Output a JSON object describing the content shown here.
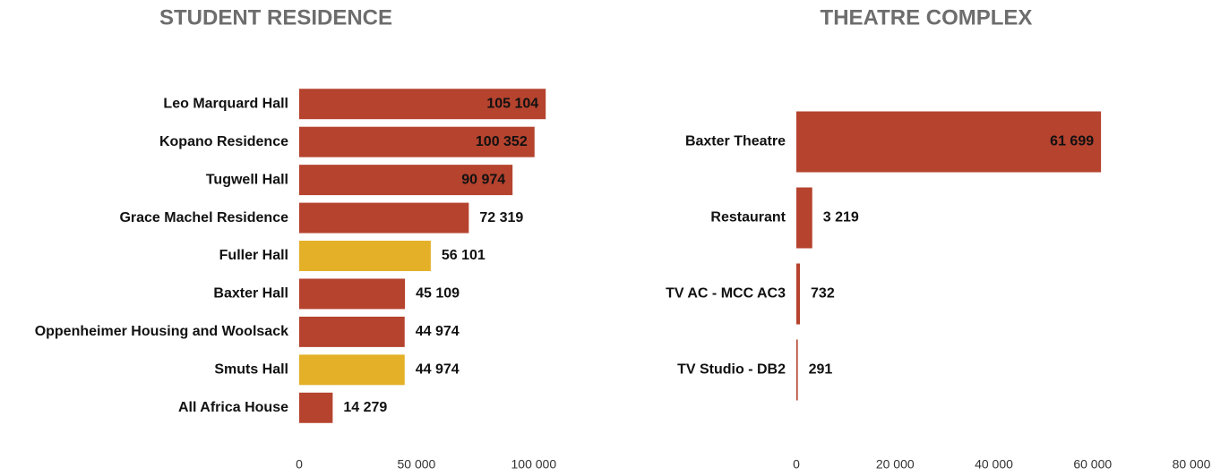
{
  "chart_data": [
    {
      "type": "hbar",
      "title": "STUDENT RESIDENCE",
      "categories": [
        "Leo Marquard Hall",
        "Kopano Residence",
        "Tugwell Hall",
        "Grace Machel Residence",
        "Fuller Hall",
        "Baxter Hall",
        "Oppenheimer Housing and Woolsack",
        "Smuts Hall",
        "All Africa House"
      ],
      "values": [
        105104,
        100352,
        90974,
        72319,
        56101,
        45109,
        44974,
        44974,
        14279
      ],
      "value_labels": [
        "105 104",
        "100 352",
        "90 974",
        "72 319",
        "56 101",
        "45 109",
        "44 974",
        "44 974",
        "14 279"
      ],
      "colors": [
        "#b5432e",
        "#b5432e",
        "#b5432e",
        "#b5432e",
        "#e3b027",
        "#b5432e",
        "#b5432e",
        "#e3b027",
        "#b5432e"
      ],
      "xlim": [
        0,
        110000
      ],
      "xticks": [
        0,
        {
          "value": 50000,
          "label": "50 000"
        },
        {
          "value": 100000,
          "label": "100 000"
        }
      ]
    },
    {
      "type": "hbar",
      "title": "THEATRE COMPLEX",
      "categories": [
        "Baxter Theatre",
        "Restaurant",
        "TV AC - MCC AC3",
        "TV Studio - DB2"
      ],
      "values": [
        61699,
        3219,
        732,
        291
      ],
      "value_labels": [
        "61 699",
        "3 219",
        "732",
        "291"
      ],
      "colors": [
        "#b5432e",
        "#b5432e",
        "#b5432e",
        "#b5432e"
      ],
      "xlim": [
        0,
        80000
      ],
      "xticks": [
        0,
        {
          "value": 20000,
          "label": "20 000"
        },
        {
          "value": 40000,
          "label": "40 000"
        },
        {
          "value": 60000,
          "label": "60 000"
        },
        {
          "value": 80000,
          "label": "80 000"
        }
      ]
    }
  ]
}
